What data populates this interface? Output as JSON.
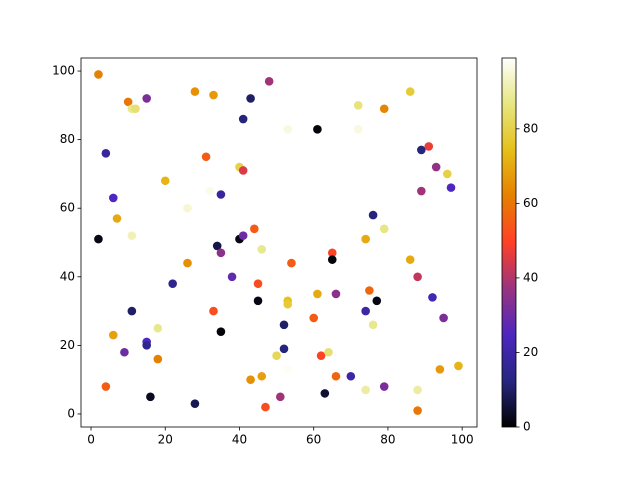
{
  "chart_data": {
    "type": "scatter",
    "x": [
      2,
      2,
      4,
      4,
      6,
      6,
      7,
      9,
      10,
      11,
      11,
      11,
      12,
      15,
      15,
      15,
      16,
      18,
      18,
      20,
      22,
      26,
      26,
      28,
      28,
      31,
      32,
      33,
      33,
      34,
      35,
      35,
      35,
      38,
      40,
      40,
      41,
      41,
      41,
      43,
      43,
      44,
      45,
      45,
      46,
      46,
      47,
      48,
      50,
      51,
      52,
      52,
      53,
      53,
      53,
      53,
      54,
      58,
      60,
      61,
      61,
      62,
      63,
      64,
      65,
      65,
      66,
      66,
      70,
      72,
      72,
      74,
      74,
      74,
      75,
      76,
      76,
      77,
      79,
      79,
      79,
      86,
      86,
      88,
      88,
      88,
      89,
      89,
      91,
      92,
      93,
      95,
      96,
      97,
      94,
      99
    ],
    "y": [
      99,
      51,
      76,
      8,
      63,
      23,
      57,
      18,
      91,
      89,
      52,
      30,
      89,
      92,
      21,
      20,
      5,
      16,
      25,
      68,
      38,
      60,
      44,
      94,
      3,
      75,
      65,
      93,
      30,
      49,
      64,
      47,
      24,
      40,
      72,
      51,
      86,
      71,
      52,
      10,
      92,
      54,
      33,
      38,
      48,
      11,
      2,
      97,
      17,
      5,
      26,
      19,
      33,
      32,
      83,
      13,
      44,
      15,
      28,
      83,
      35,
      17,
      6,
      18,
      47,
      45,
      11,
      35,
      11,
      90,
      83,
      51,
      30,
      7,
      36,
      58,
      26,
      33,
      89,
      54,
      8,
      94,
      45,
      40,
      7,
      1,
      77,
      65,
      78,
      34,
      72,
      28,
      70,
      66,
      13,
      14
    ],
    "c": [
      62,
      2,
      18,
      55,
      25,
      68,
      70,
      30,
      60,
      88,
      92,
      10,
      85,
      32,
      25,
      15,
      3,
      62,
      88,
      72,
      15,
      95,
      65,
      65,
      8,
      55,
      97,
      67,
      52,
      7,
      18,
      35,
      1,
      28,
      80,
      2,
      12,
      45,
      30,
      65,
      10,
      55,
      2,
      52,
      88,
      68,
      52,
      38,
      82,
      38,
      10,
      12,
      75,
      78,
      96,
      98,
      55,
      99,
      55,
      1,
      70,
      50,
      5,
      85,
      50,
      1,
      57,
      35,
      20,
      86,
      96,
      70,
      20,
      90,
      57,
      12,
      88,
      2,
      63,
      87,
      32,
      78,
      70,
      42,
      90,
      60,
      12,
      38,
      47,
      22,
      36,
      32,
      80,
      25,
      67,
      72
    ],
    "xlim": [
      -2.7,
      104
    ],
    "ylim": [
      -3.8,
      103.8
    ],
    "xticks": [
      0,
      20,
      40,
      60,
      80,
      100
    ],
    "yticks": [
      0,
      20,
      40,
      60,
      80,
      100
    ],
    "clim": [
      0,
      99
    ],
    "cticks": [
      0,
      20,
      40,
      60,
      80
    ],
    "colormap": "CMRmap"
  }
}
